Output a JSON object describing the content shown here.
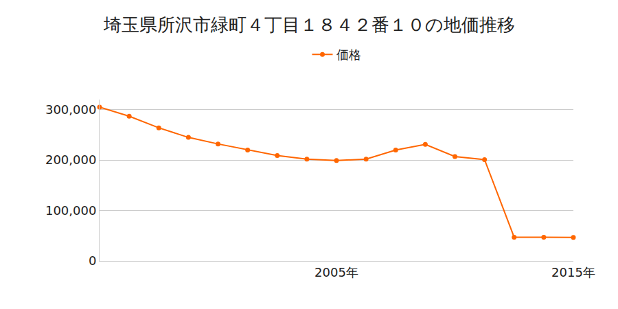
{
  "chart_data": {
    "type": "line",
    "title": "埼玉県所沢市緑町４丁目１８４２番１０の地価推移",
    "categories": [
      null,
      null,
      null,
      null,
      null,
      null,
      null,
      null,
      "2005年",
      null,
      null,
      null,
      null,
      null,
      null,
      null,
      "2015年"
    ],
    "series": [
      {
        "name": "価格",
        "color": "#ff6600",
        "marker": "circle",
        "values": [
          305000,
          287000,
          264000,
          245000,
          232000,
          220000,
          209000,
          202000,
          199000,
          202000,
          220000,
          231000,
          207000,
          201000,
          47000,
          47000,
          46500
        ]
      }
    ],
    "ylim": [
      0,
      320000
    ],
    "yticks": [
      0,
      {
        "value": 100000,
        "label": "100,000"
      },
      {
        "value": 200000,
        "label": "200,000"
      },
      {
        "value": 300000,
        "label": "300,000"
      }
    ],
    "grid": true,
    "legend": "top"
  }
}
